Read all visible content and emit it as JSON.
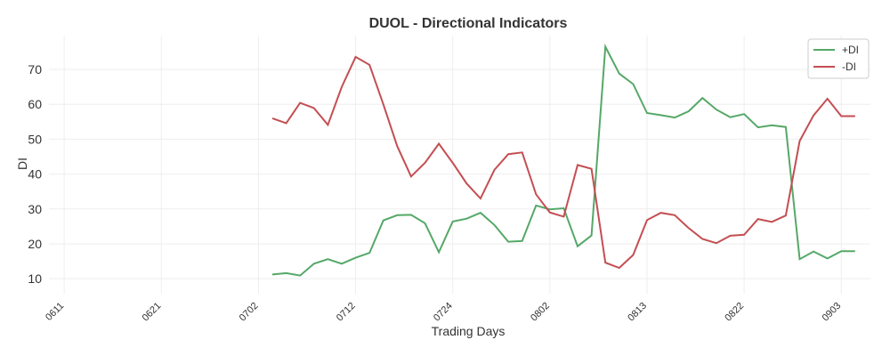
{
  "chart_data": {
    "type": "line",
    "title": "DUOL - Directional Indicators",
    "xlabel": "Trading Days",
    "ylabel": "DI",
    "categories": [
      "0611",
      null,
      null,
      null,
      null,
      null,
      null,
      "0621",
      null,
      null,
      null,
      null,
      null,
      null,
      "0702",
      null,
      null,
      null,
      null,
      null,
      null,
      "0712",
      null,
      null,
      null,
      null,
      null,
      null,
      "0724",
      null,
      null,
      null,
      null,
      null,
      null,
      "0802",
      null,
      null,
      null,
      null,
      null,
      null,
      "0813",
      null,
      null,
      null,
      null,
      null,
      null,
      "0822",
      null,
      null,
      null,
      null,
      null,
      null,
      "0903",
      null
    ],
    "series": [
      {
        "name": "+DI",
        "color": "#55a868",
        "values": [
          null,
          null,
          null,
          null,
          null,
          null,
          null,
          null,
          null,
          null,
          null,
          null,
          null,
          null,
          null,
          11.2,
          11.6,
          10.9,
          14.3,
          15.6,
          14.3,
          16.0,
          17.4,
          26.7,
          28.2,
          28.3,
          25.9,
          17.6,
          26.4,
          27.2,
          28.9,
          25.4,
          20.6,
          20.8,
          31.0,
          29.9,
          30.2,
          19.3,
          22.4,
          76.5,
          68.8,
          65.8,
          57.5,
          56.9,
          56.2,
          58.0,
          61.8,
          58.5,
          56.3,
          57.2,
          53.4,
          54.0,
          53.5,
          15.6,
          17.8,
          15.8,
          17.9,
          17.9
        ]
      },
      {
        "name": "-DI",
        "color": "#c44e52",
        "values": [
          null,
          null,
          null,
          null,
          null,
          null,
          null,
          null,
          null,
          null,
          null,
          null,
          null,
          null,
          null,
          56.0,
          54.6,
          60.4,
          58.9,
          54.1,
          65.0,
          73.6,
          71.3,
          60.0,
          48.0,
          39.3,
          43.2,
          48.7,
          43.2,
          37.3,
          33.0,
          41.2,
          45.7,
          46.2,
          34.2,
          29.0,
          27.8,
          42.6,
          41.5,
          14.6,
          13.1,
          16.8,
          26.8,
          28.9,
          28.2,
          24.5,
          21.4,
          20.2,
          22.3,
          22.6,
          27.1,
          26.3,
          28.1,
          49.5,
          56.8,
          61.6,
          56.6,
          56.6
        ]
      }
    ],
    "ylim": [
      5.7,
      79.7
    ],
    "yticks": [
      10,
      20,
      30,
      40,
      50,
      60,
      70
    ],
    "grid": true,
    "legend": "upper right"
  }
}
